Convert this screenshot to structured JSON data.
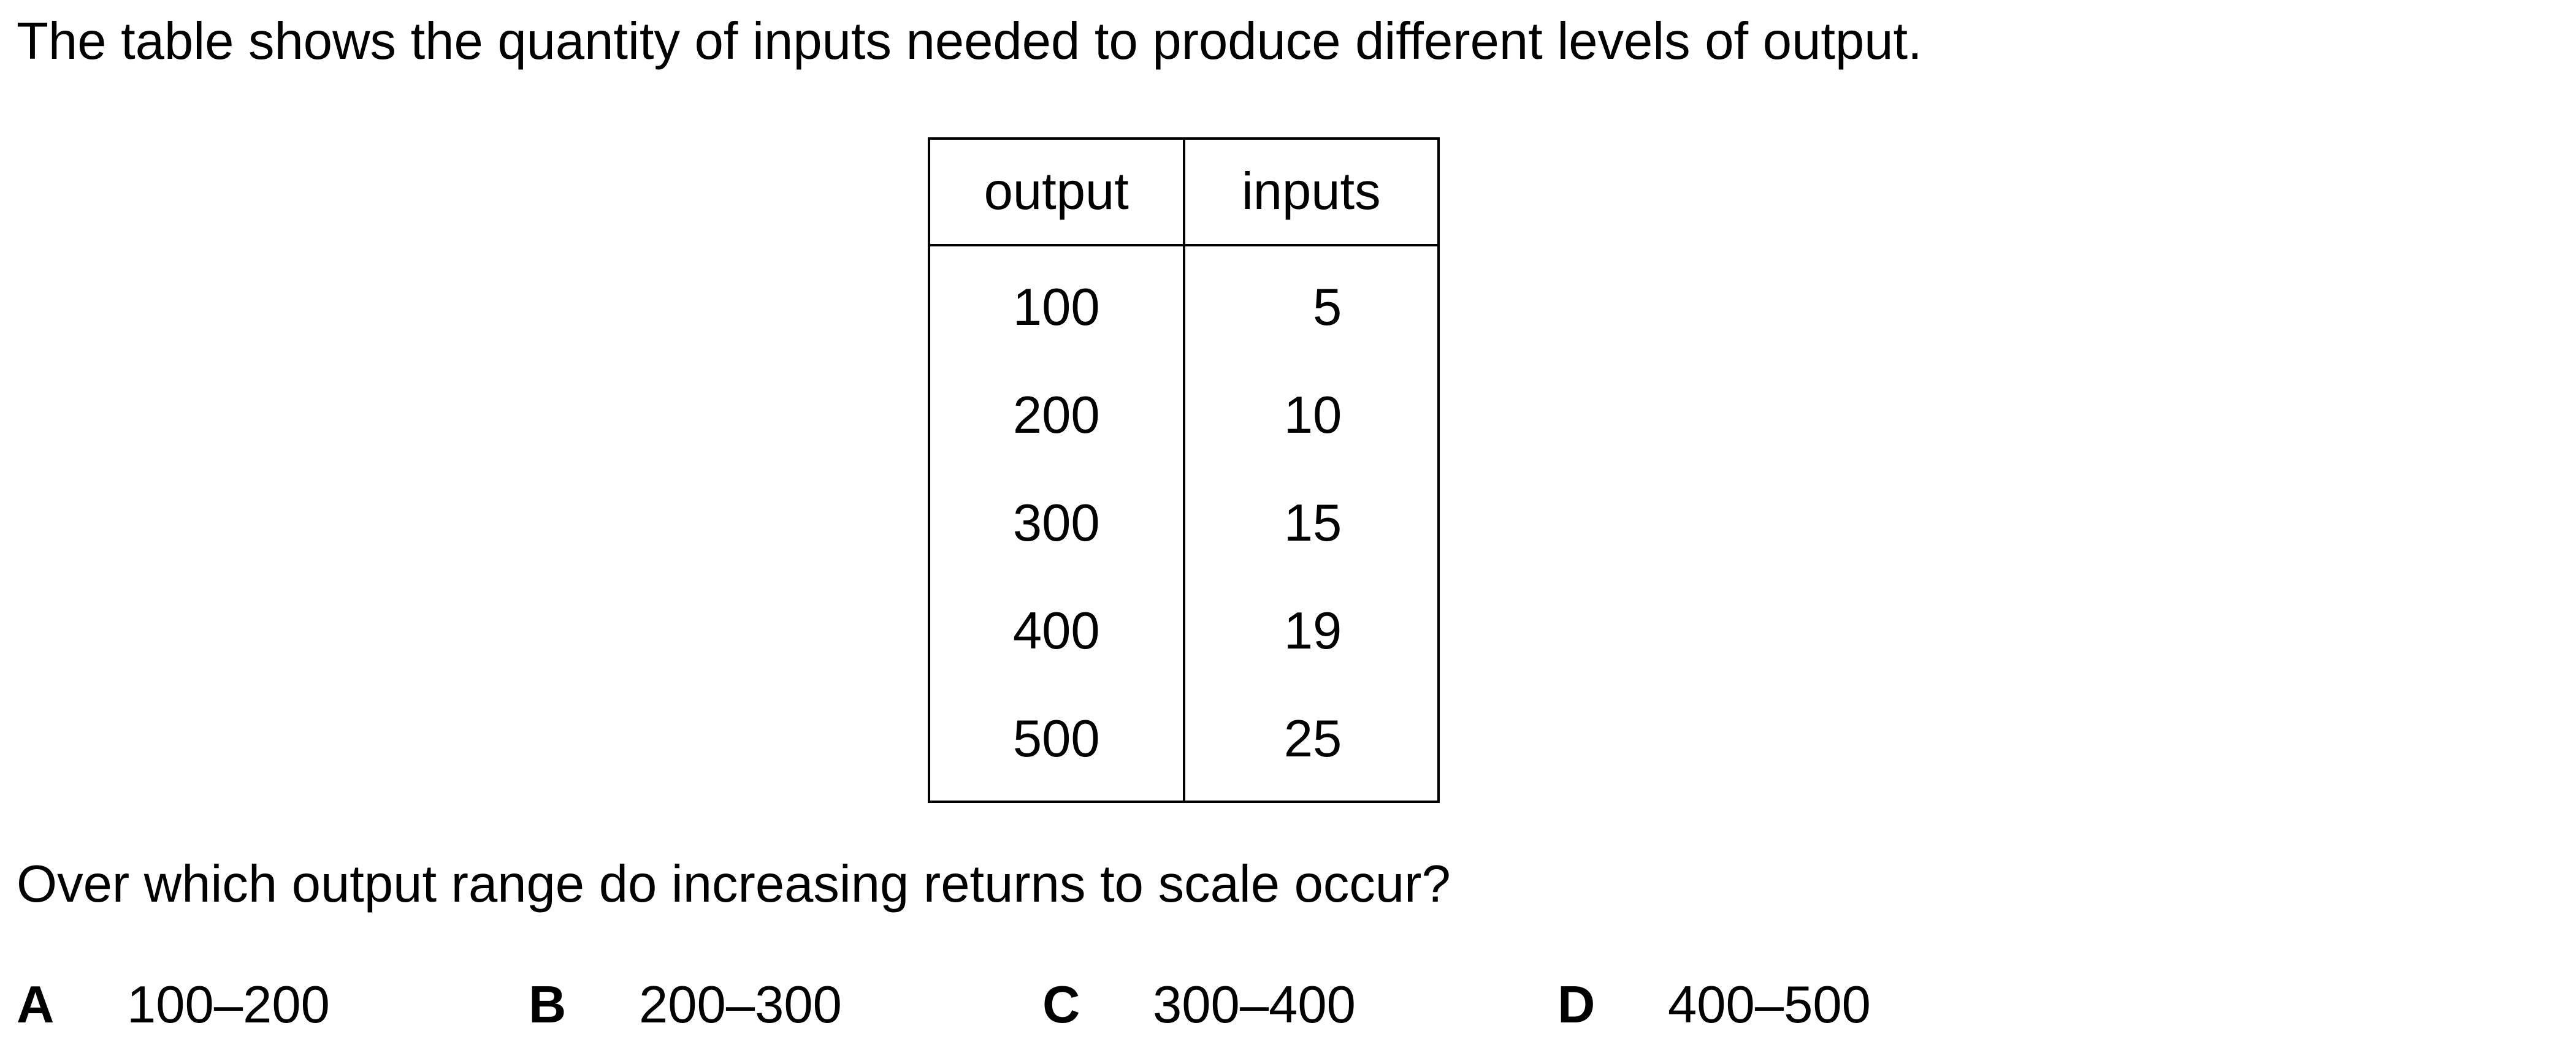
{
  "intro": "The table shows the quantity of inputs needed to produce different levels of output.",
  "table": {
    "headers": [
      "output",
      "inputs"
    ],
    "rows": [
      [
        "100",
        "5"
      ],
      [
        "200",
        "10"
      ],
      [
        "300",
        "15"
      ],
      [
        "400",
        "19"
      ],
      [
        "500",
        "25"
      ]
    ]
  },
  "question": "Over which output range do increasing returns to scale occur?",
  "options": [
    {
      "letter": "A",
      "text": "100–200"
    },
    {
      "letter": "B",
      "text": "200–300"
    },
    {
      "letter": "C",
      "text": "300–400"
    },
    {
      "letter": "D",
      "text": "400–500"
    }
  ]
}
